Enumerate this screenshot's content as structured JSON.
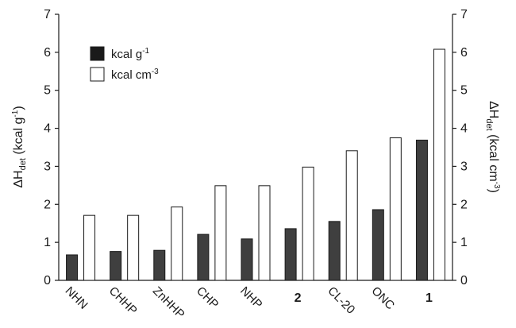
{
  "chart_data": {
    "type": "bar",
    "categories": [
      "NHN",
      "CHHP",
      "ZnHHP",
      "CHP",
      "NHP",
      "2",
      "CL-20",
      "ONC",
      "1"
    ],
    "bold_categories": [
      "2",
      "1"
    ],
    "series": [
      {
        "name": "kcal g",
        "legend_sup": "-1",
        "color": "#3f3f3f",
        "values": [
          0.67,
          0.76,
          0.79,
          1.21,
          1.09,
          1.36,
          1.55,
          1.86,
          3.69
        ]
      },
      {
        "name": "kcal cm",
        "legend_sup": "-3",
        "color": "#ffffff",
        "values": [
          1.71,
          1.71,
          1.93,
          2.49,
          2.49,
          2.98,
          3.41,
          3.75,
          6.08
        ]
      }
    ],
    "y_ticks": [
      "0",
      "1",
      "2",
      "3",
      "4",
      "5",
      "6",
      "7"
    ],
    "ylim": [
      0,
      7
    ],
    "ylabel_left": {
      "prefix": "ΔH",
      "sub": "det",
      "mid": " (kcal g",
      "sup": "-1",
      "end": ")"
    },
    "ylabel_right": {
      "prefix": "ΔH",
      "sub": "det",
      "mid": " (kcal cm",
      "sup": "-3",
      "end": ")"
    },
    "legend_position": "top-left",
    "grid": false
  }
}
